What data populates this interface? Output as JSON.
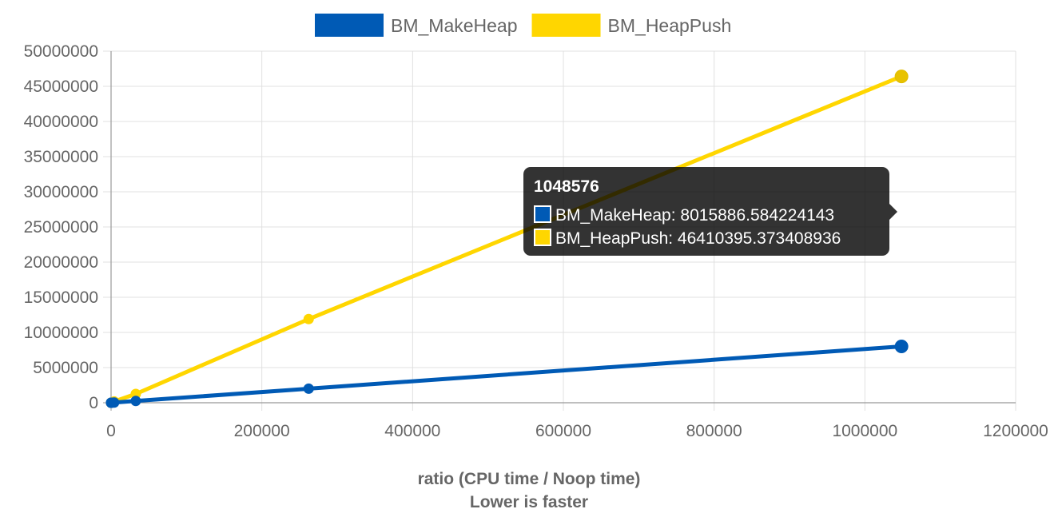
{
  "chart_data": {
    "type": "line",
    "title": "",
    "xlabel": "ratio (CPU time / Noop time)",
    "xlabel_note": "Lower is faster",
    "ylabel": "",
    "xlim": [
      0,
      1200000
    ],
    "ylim": [
      0,
      50000000
    ],
    "x_ticks": [
      0,
      200000,
      400000,
      600000,
      800000,
      1000000,
      1200000
    ],
    "y_ticks": [
      0,
      5000000,
      10000000,
      15000000,
      20000000,
      25000000,
      30000000,
      35000000,
      40000000,
      45000000,
      50000000
    ],
    "grid": true,
    "legend_position": "top-center",
    "series": [
      {
        "name": "BM_MakeHeap",
        "color": "#005ab5",
        "x": [
          1,
          8,
          64,
          512,
          4096,
          32768,
          262144,
          1048576
        ],
        "values": [
          1,
          6,
          50,
          400,
          31000,
          250000,
          2000000,
          8015886.584224143
        ]
      },
      {
        "name": "BM_HeapPush",
        "color": "#ffd600",
        "x": [
          1,
          8,
          64,
          512,
          4096,
          32768,
          262144,
          1048576
        ],
        "values": [
          1,
          40,
          280,
          2200,
          180000,
          1250000,
          11900000,
          46410395.373408936
        ]
      }
    ],
    "tooltip": {
      "title": "1048576",
      "lines": [
        {
          "series": "BM_MakeHeap",
          "text": "BM_MakeHeap: 8015886.584224143",
          "color": "#005ab5"
        },
        {
          "series": "BM_HeapPush",
          "text": "BM_HeapPush: 46410395.373408936",
          "color": "#ffd600"
        }
      ]
    }
  }
}
